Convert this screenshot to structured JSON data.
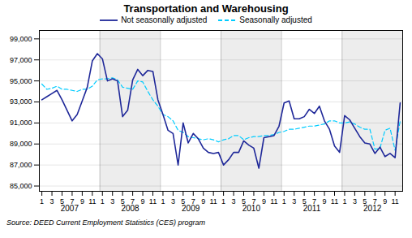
{
  "chart_data": {
    "type": "line",
    "title": "Transportation and Warehousing",
    "caption": "Source: DEED Current Employment Statistics (CES) program",
    "categories": [
      "1",
      null,
      "3",
      null,
      "5",
      null,
      "7",
      null,
      "9",
      null,
      "11",
      null,
      "1",
      null,
      "3",
      null,
      "5",
      null,
      "7",
      null,
      "9",
      null,
      "11",
      null,
      "1",
      null,
      "3",
      null,
      "5",
      null,
      "7",
      null,
      "9",
      null,
      "11",
      null,
      "1",
      null,
      "3",
      null,
      "5",
      null,
      "7",
      null,
      "9",
      null,
      "11",
      null,
      "1",
      null,
      "3",
      null,
      "5",
      null,
      "7",
      null,
      "9",
      null,
      "11",
      null,
      "1",
      null,
      "3",
      null,
      "5",
      null,
      "7",
      null,
      "9",
      null,
      "11",
      null
    ],
    "annotations": [
      "2007",
      "2008",
      "2009",
      "2010",
      "2011",
      "2012"
    ],
    "series": [
      {
        "name": "Not seasonally adjusted",
        "color": "#1f2899",
        "line_style": "solid",
        "values": [
          93200,
          93500,
          93800,
          94100,
          93200,
          92200,
          91200,
          91800,
          93100,
          94400,
          96900,
          97600,
          97100,
          95000,
          95200,
          95000,
          91600,
          92200,
          95100,
          96100,
          95500,
          96000,
          95900,
          93200,
          91800,
          90300,
          90000,
          87000,
          91000,
          89100,
          90000,
          89500,
          88600,
          88200,
          88100,
          88200,
          87000,
          87500,
          88200,
          88200,
          89300,
          88900,
          88600,
          86700,
          89600,
          89700,
          89800,
          90700,
          92900,
          93100,
          91400,
          91400,
          91600,
          92300,
          91900,
          92600,
          91200,
          90400,
          88800,
          88200,
          91700,
          91300,
          90500,
          89700,
          89100,
          89000,
          88100,
          88700,
          87800,
          88100,
          87700,
          92900
        ]
      },
      {
        "name": "Seasonally adjusted",
        "color": "#00ccff",
        "line_style": "dashed",
        "values": [
          94700,
          94200,
          94300,
          94500,
          94200,
          94200,
          94100,
          94000,
          94200,
          94200,
          94500,
          95100,
          95200,
          95200,
          95300,
          95100,
          94400,
          94300,
          94200,
          95000,
          94900,
          94000,
          93200,
          92600,
          91800,
          91600,
          91200,
          90300,
          90100,
          89700,
          89600,
          89500,
          89400,
          89500,
          89400,
          89200,
          89400,
          89500,
          89800,
          89800,
          89400,
          89600,
          89700,
          89700,
          89800,
          89800,
          89900,
          90100,
          90200,
          90400,
          90400,
          90500,
          90600,
          90700,
          90700,
          90800,
          90900,
          91200,
          91200,
          91000,
          91000,
          91100,
          90900,
          90600,
          90400,
          90400,
          88500,
          88600,
          90300,
          90500,
          88400,
          91200
        ]
      }
    ],
    "ylim": [
      84500,
      99800
    ],
    "yticks": [
      {
        "value": 85000,
        "label": "85,000"
      },
      {
        "value": 87000,
        "label": "87,000"
      },
      {
        "value": 89000,
        "label": "89,000"
      },
      {
        "value": 91000,
        "label": "91,000"
      },
      {
        "value": 93000,
        "label": "93,000"
      },
      {
        "value": 95000,
        "label": "95,000"
      },
      {
        "value": 97000,
        "label": "97,000"
      },
      {
        "value": 99000,
        "label": "99,000"
      }
    ],
    "grid": true,
    "legend": "top"
  }
}
